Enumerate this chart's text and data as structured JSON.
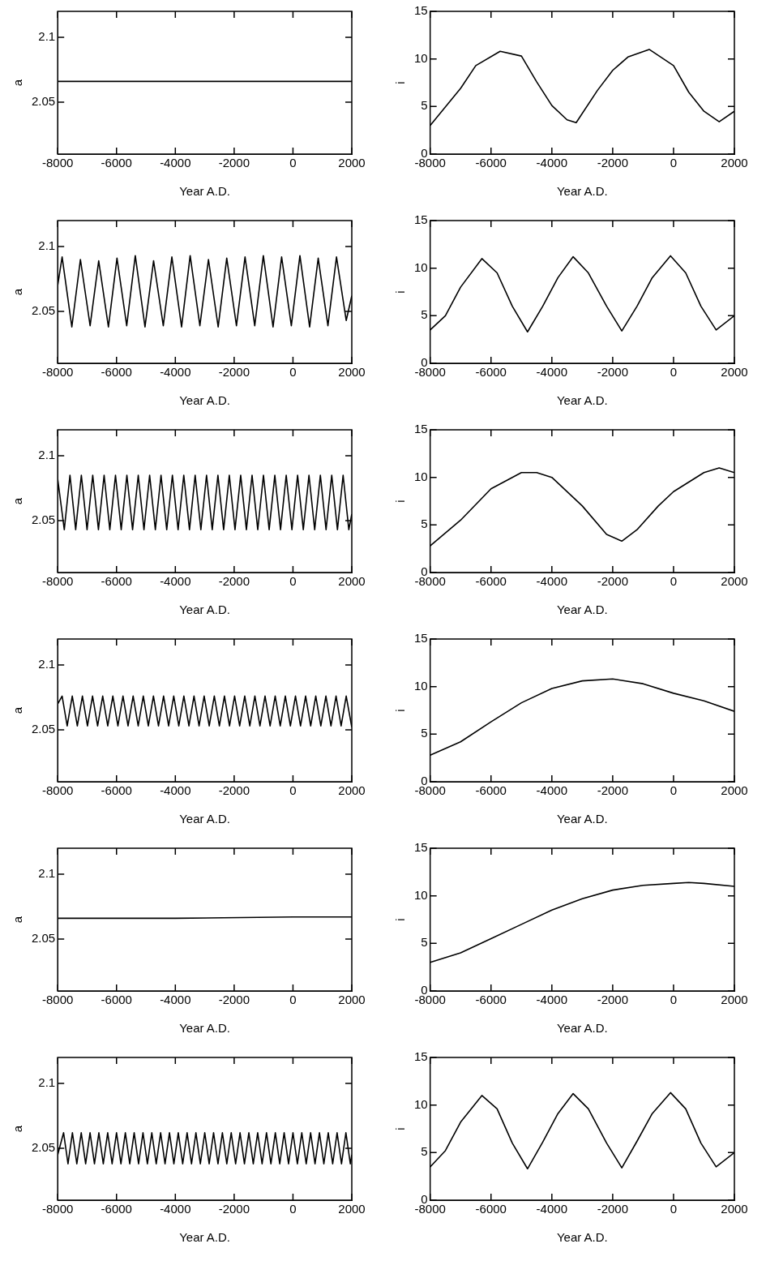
{
  "chart_data": [
    {
      "type": "line",
      "xlabel": "Year A.D.",
      "ylabel": "a",
      "color": "#000000",
      "marker": "none",
      "line_style": "solid",
      "xlim": [
        -8000,
        2000
      ],
      "xticks": [
        -8000,
        -6000,
        -4000,
        -2000,
        0,
        2000
      ],
      "ylim": [
        2.01,
        2.12
      ],
      "yticks": [
        2.05,
        2.1
      ],
      "x": [
        -8000,
        2000
      ],
      "values": [
        2.066,
        2.066
      ]
    },
    {
      "type": "line",
      "xlabel": "Year A.D.",
      "ylabel": "i",
      "color": "#000000",
      "marker": "none",
      "line_style": "solid",
      "xlim": [
        -8000,
        2000
      ],
      "xticks": [
        -8000,
        -6000,
        -4000,
        -2000,
        0,
        2000
      ],
      "ylim": [
        0,
        15
      ],
      "yticks": [
        0,
        5,
        10,
        15
      ],
      "x": [
        -8000,
        -7000,
        -6500,
        -5700,
        -5000,
        -4500,
        -4000,
        -3500,
        -3200,
        -2500,
        -2000,
        -1500,
        -800,
        0,
        500,
        1000,
        1500,
        2000
      ],
      "values": [
        3.0,
        6.9,
        9.3,
        10.8,
        10.3,
        7.6,
        5.1,
        3.6,
        3.3,
        6.7,
        8.8,
        10.2,
        11.0,
        9.3,
        6.5,
        4.5,
        3.4,
        4.5
      ]
    },
    {
      "type": "line",
      "xlabel": "Year A.D.",
      "ylabel": "a",
      "color": "#000000",
      "marker": "none",
      "line_style": "solid",
      "xlim": [
        -8000,
        2000
      ],
      "xticks": [
        -8000,
        -6000,
        -4000,
        -2000,
        0,
        2000
      ],
      "ylim": [
        2.01,
        2.12
      ],
      "yticks": [
        2.05,
        2.1
      ],
      "x": [
        -8000,
        -7850,
        -7520,
        -7228,
        -6898,
        -6606,
        -6276,
        -5984,
        -5654,
        -5362,
        -5032,
        -4740,
        -4410,
        -4118,
        -3788,
        -3496,
        -3166,
        -2874,
        -2544,
        -2252,
        -1922,
        -1630,
        -1300,
        -1008,
        -678,
        -386,
        -56,
        236,
        566,
        858,
        1188,
        1480,
        1810,
        2000
      ],
      "values": [
        2.07,
        2.092,
        2.038,
        2.09,
        2.039,
        2.089,
        2.038,
        2.091,
        2.039,
        2.093,
        2.038,
        2.089,
        2.039,
        2.092,
        2.038,
        2.093,
        2.039,
        2.09,
        2.038,
        2.091,
        2.039,
        2.092,
        2.039,
        2.093,
        2.038,
        2.092,
        2.039,
        2.093,
        2.038,
        2.091,
        2.039,
        2.092,
        2.043,
        2.062
      ]
    },
    {
      "type": "line",
      "xlabel": "Year A.D.",
      "ylabel": "i",
      "color": "#000000",
      "marker": "none",
      "line_style": "solid",
      "xlim": [
        -8000,
        2000
      ],
      "xticks": [
        -8000,
        -6000,
        -4000,
        -2000,
        0,
        2000
      ],
      "ylim": [
        0,
        15
      ],
      "yticks": [
        0,
        5,
        10,
        15
      ],
      "x": [
        -8000,
        -7500,
        -7000,
        -6300,
        -5800,
        -5300,
        -4800,
        -4300,
        -3800,
        -3300,
        -2800,
        -2200,
        -1700,
        -1200,
        -700,
        -100,
        400,
        900,
        1400,
        2000
      ],
      "values": [
        3.5,
        5.0,
        8.0,
        11.0,
        9.5,
        6.0,
        3.3,
        6.0,
        9.0,
        11.2,
        9.5,
        6.0,
        3.4,
        6.0,
        9.0,
        11.3,
        9.5,
        6.0,
        3.5,
        5.0
      ]
    },
    {
      "type": "line",
      "xlabel": "Year A.D.",
      "ylabel": "a",
      "color": "#000000",
      "marker": "none",
      "line_style": "solid",
      "xlim": [
        -8000,
        2000
      ],
      "xticks": [
        -8000,
        -6000,
        -4000,
        -2000,
        0,
        2000
      ],
      "ylim": [
        2.01,
        2.12
      ],
      "yticks": [
        2.05,
        2.1
      ],
      "x": [
        -8000,
        -7776,
        -7583,
        -7389,
        -7196,
        -7002,
        -6809,
        -6615,
        -6422,
        -6228,
        -6035,
        -5841,
        -5648,
        -5454,
        -5261,
        -5067,
        -4874,
        -4680,
        -4487,
        -4293,
        -4100,
        -3906,
        -3713,
        -3519,
        -3326,
        -3132,
        -2939,
        -2745,
        -2552,
        -2358,
        -2165,
        -1971,
        -1778,
        -1584,
        -1391,
        -1197,
        -1004,
        -810,
        -617,
        -423,
        -230,
        -36,
        157,
        351,
        544,
        738,
        931,
        1125,
        1318,
        1512,
        1705,
        1899,
        2000
      ],
      "values": [
        2.082,
        2.043,
        2.085,
        2.043,
        2.085,
        2.043,
        2.085,
        2.043,
        2.085,
        2.043,
        2.085,
        2.043,
        2.085,
        2.043,
        2.085,
        2.043,
        2.085,
        2.043,
        2.085,
        2.043,
        2.085,
        2.043,
        2.085,
        2.043,
        2.085,
        2.043,
        2.085,
        2.043,
        2.085,
        2.043,
        2.085,
        2.043,
        2.085,
        2.043,
        2.085,
        2.043,
        2.085,
        2.043,
        2.085,
        2.043,
        2.085,
        2.043,
        2.085,
        2.043,
        2.085,
        2.043,
        2.085,
        2.043,
        2.085,
        2.043,
        2.085,
        2.043,
        2.055
      ]
    },
    {
      "type": "line",
      "xlabel": "Year A.D.",
      "ylabel": "i",
      "color": "#000000",
      "marker": "none",
      "line_style": "solid",
      "xlim": [
        -8000,
        2000
      ],
      "xticks": [
        -8000,
        -6000,
        -4000,
        -2000,
        0,
        2000
      ],
      "ylim": [
        0,
        15
      ],
      "yticks": [
        0,
        5,
        10,
        15
      ],
      "x": [
        -8000,
        -7000,
        -6000,
        -5000,
        -4500,
        -4000,
        -3000,
        -2200,
        -1700,
        -1200,
        -500,
        0,
        500,
        1000,
        1500,
        2000
      ],
      "values": [
        2.8,
        5.5,
        8.8,
        10.5,
        10.5,
        10.0,
        7.0,
        4.0,
        3.3,
        4.5,
        7.0,
        8.5,
        9.5,
        10.5,
        11.0,
        10.5
      ]
    },
    {
      "type": "line",
      "xlabel": "Year A.D.",
      "ylabel": "a",
      "color": "#000000",
      "marker": "none",
      "line_style": "solid",
      "xlim": [
        -8000,
        2000
      ],
      "xticks": [
        -8000,
        -6000,
        -4000,
        -2000,
        0,
        2000
      ],
      "ylim": [
        2.01,
        2.12
      ],
      "yticks": [
        2.05,
        2.1
      ],
      "x": [
        -8000,
        -7850,
        -7678,
        -7505,
        -7333,
        -7160,
        -6988,
        -6815,
        -6643,
        -6470,
        -6298,
        -6125,
        -5953,
        -5780,
        -5608,
        -5435,
        -5263,
        -5090,
        -4918,
        -4745,
        -4573,
        -4400,
        -4228,
        -4055,
        -3883,
        -3710,
        -3538,
        -3365,
        -3193,
        -3020,
        -2848,
        -2675,
        -2503,
        -2330,
        -2158,
        -1985,
        -1813,
        -1640,
        -1468,
        -1295,
        -1123,
        -950,
        -778,
        -605,
        -433,
        -260,
        -88,
        85,
        257,
        430,
        602,
        775,
        947,
        1120,
        1292,
        1465,
        1637,
        1810,
        2000
      ],
      "values": [
        2.07,
        2.076,
        2.053,
        2.076,
        2.053,
        2.076,
        2.053,
        2.076,
        2.053,
        2.076,
        2.053,
        2.076,
        2.053,
        2.076,
        2.053,
        2.076,
        2.053,
        2.076,
        2.053,
        2.076,
        2.053,
        2.076,
        2.053,
        2.076,
        2.053,
        2.076,
        2.053,
        2.076,
        2.053,
        2.076,
        2.053,
        2.076,
        2.053,
        2.076,
        2.053,
        2.076,
        2.053,
        2.076,
        2.053,
        2.076,
        2.053,
        2.076,
        2.053,
        2.076,
        2.053,
        2.076,
        2.053,
        2.076,
        2.053,
        2.076,
        2.053,
        2.076,
        2.053,
        2.076,
        2.053,
        2.076,
        2.053,
        2.076,
        2.052
      ]
    },
    {
      "type": "line",
      "xlabel": "Year A.D.",
      "ylabel": "i",
      "color": "#000000",
      "marker": "none",
      "line_style": "solid",
      "xlim": [
        -8000,
        2000
      ],
      "xticks": [
        -8000,
        -6000,
        -4000,
        -2000,
        0,
        2000
      ],
      "ylim": [
        0,
        15
      ],
      "yticks": [
        0,
        5,
        10,
        15
      ],
      "x": [
        -8000,
        -7000,
        -6000,
        -5000,
        -4000,
        -3000,
        -2000,
        -1000,
        0,
        1000,
        2000
      ],
      "values": [
        2.8,
        4.2,
        6.3,
        8.3,
        9.8,
        10.6,
        10.8,
        10.3,
        9.3,
        8.5,
        7.4
      ]
    },
    {
      "type": "line",
      "xlabel": "Year A.D.",
      "ylabel": "a",
      "color": "#000000",
      "marker": "none",
      "line_style": "solid",
      "xlim": [
        -8000,
        2000
      ],
      "xticks": [
        -8000,
        -6000,
        -4000,
        -2000,
        0,
        2000
      ],
      "ylim": [
        2.01,
        2.12
      ],
      "yticks": [
        2.05,
        2.1
      ],
      "x": [
        -8000,
        -4000,
        0,
        2000
      ],
      "values": [
        2.066,
        2.066,
        2.067,
        2.067
      ]
    },
    {
      "type": "line",
      "xlabel": "Year A.D.",
      "ylabel": "i",
      "color": "#000000",
      "marker": "none",
      "line_style": "solid",
      "xlim": [
        -8000,
        2000
      ],
      "xticks": [
        -8000,
        -6000,
        -4000,
        -2000,
        0,
        2000
      ],
      "ylim": [
        0,
        15
      ],
      "yticks": [
        0,
        5,
        10,
        15
      ],
      "x": [
        -8000,
        -7000,
        -6000,
        -5000,
        -4000,
        -3000,
        -2000,
        -1000,
        0,
        500,
        1000,
        2000
      ],
      "values": [
        3.0,
        4.0,
        5.5,
        7.0,
        8.5,
        9.7,
        10.6,
        11.1,
        11.3,
        11.4,
        11.3,
        11.0
      ]
    },
    {
      "type": "line",
      "xlabel": "Year A.D.",
      "ylabel": "a",
      "color": "#000000",
      "marker": "none",
      "line_style": "solid",
      "xlim": [
        -8000,
        2000
      ],
      "xticks": [
        -8000,
        -6000,
        -4000,
        -2000,
        0,
        2000
      ],
      "ylim": [
        2.01,
        2.12
      ],
      "yticks": [
        2.05,
        2.1
      ],
      "x": [
        -8000,
        -7800,
        -7650,
        -7500,
        -7350,
        -7200,
        -7050,
        -6900,
        -6750,
        -6600,
        -6450,
        -6300,
        -6150,
        -6000,
        -5850,
        -5700,
        -5550,
        -5400,
        -5250,
        -5100,
        -4950,
        -4800,
        -4650,
        -4500,
        -4350,
        -4200,
        -4050,
        -3900,
        -3750,
        -3600,
        -3450,
        -3300,
        -3150,
        -3000,
        -2850,
        -2700,
        -2550,
        -2400,
        -2250,
        -2100,
        -1950,
        -1800,
        -1650,
        -1500,
        -1350,
        -1200,
        -1050,
        -900,
        -750,
        -600,
        -450,
        -300,
        -150,
        0,
        150,
        300,
        450,
        600,
        750,
        900,
        1050,
        1200,
        1350,
        1500,
        1650,
        1800,
        1950,
        2000
      ],
      "values": [
        2.045,
        2.062,
        2.038,
        2.062,
        2.038,
        2.062,
        2.038,
        2.062,
        2.038,
        2.062,
        2.038,
        2.062,
        2.038,
        2.062,
        2.038,
        2.062,
        2.038,
        2.062,
        2.038,
        2.062,
        2.038,
        2.062,
        2.038,
        2.062,
        2.038,
        2.062,
        2.038,
        2.062,
        2.038,
        2.062,
        2.038,
        2.062,
        2.038,
        2.062,
        2.038,
        2.062,
        2.038,
        2.062,
        2.038,
        2.062,
        2.038,
        2.062,
        2.038,
        2.062,
        2.038,
        2.062,
        2.038,
        2.062,
        2.038,
        2.062,
        2.038,
        2.062,
        2.038,
        2.062,
        2.038,
        2.062,
        2.038,
        2.062,
        2.038,
        2.062,
        2.038,
        2.062,
        2.038,
        2.062,
        2.038,
        2.062,
        2.038,
        2.045
      ]
    },
    {
      "type": "line",
      "xlabel": "Year A.D.",
      "ylabel": "i",
      "color": "#000000",
      "marker": "none",
      "line_style": "solid",
      "xlim": [
        -8000,
        2000
      ],
      "xticks": [
        -8000,
        -6000,
        -4000,
        -2000,
        0,
        2000
      ],
      "ylim": [
        0,
        15
      ],
      "yticks": [
        0,
        5,
        10,
        15
      ],
      "x": [
        -8000,
        -7500,
        -7000,
        -6300,
        -5800,
        -5300,
        -4800,
        -4300,
        -3800,
        -3300,
        -2800,
        -2200,
        -1700,
        -1200,
        -700,
        -100,
        400,
        900,
        1400,
        2000
      ],
      "values": [
        3.5,
        5.2,
        8.2,
        11.0,
        9.6,
        6.0,
        3.3,
        6.1,
        9.1,
        11.2,
        9.6,
        6.0,
        3.4,
        6.2,
        9.1,
        11.3,
        9.6,
        6.0,
        3.5,
        5.0
      ]
    }
  ]
}
